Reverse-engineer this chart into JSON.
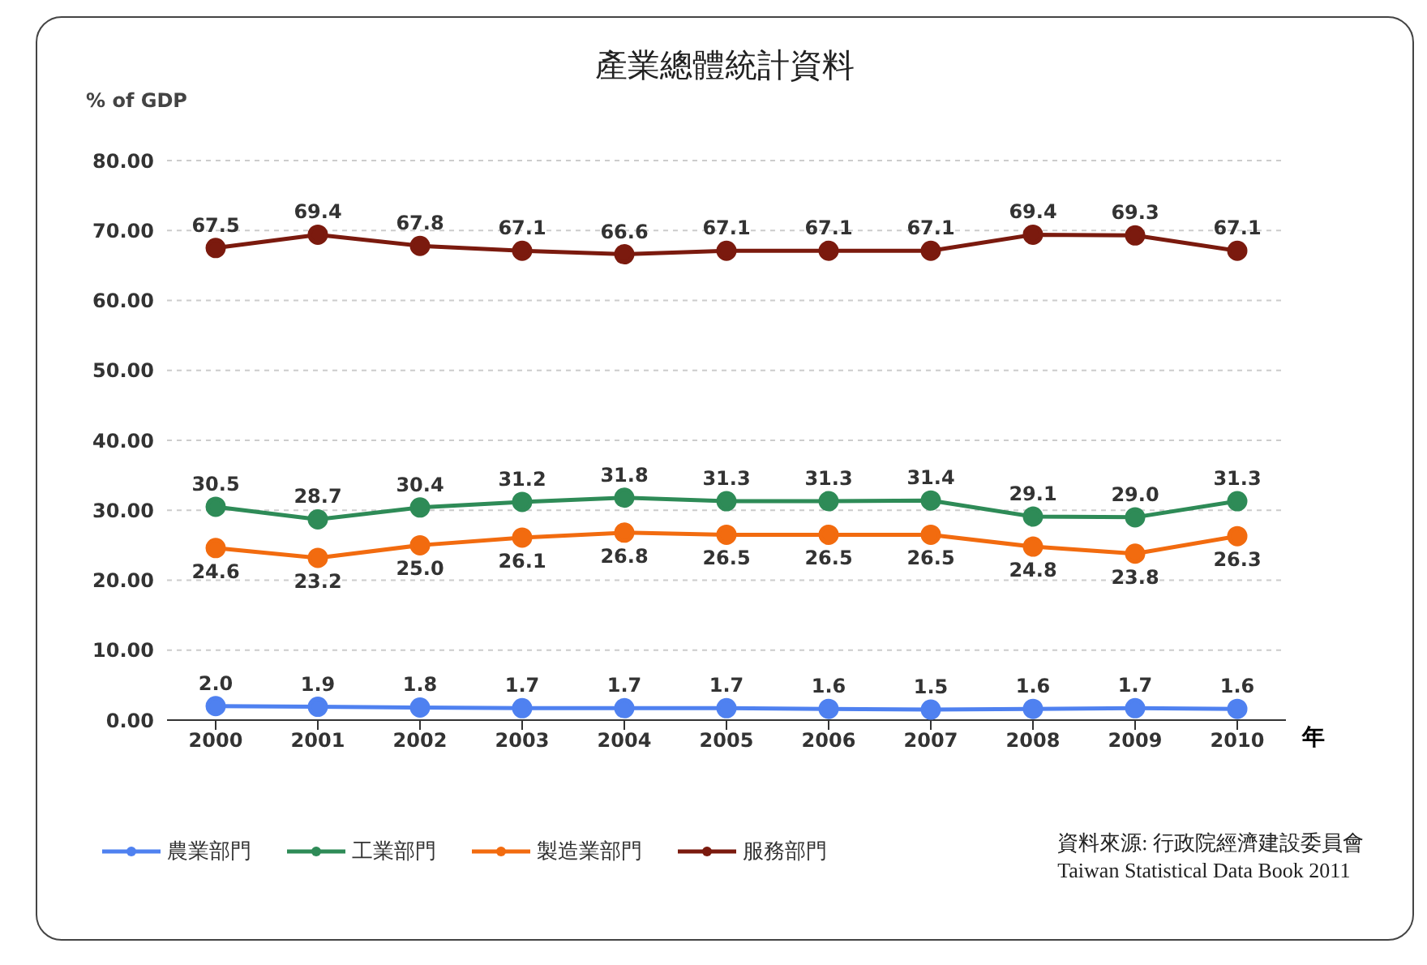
{
  "chart_data": {
    "type": "line",
    "title": "產業總體統計資料",
    "xlabel": "年",
    "ylabel": "% of GDP",
    "categories": [
      "2000",
      "2001",
      "2002",
      "2003",
      "2004",
      "2005",
      "2006",
      "2007",
      "2008",
      "2009",
      "2010"
    ],
    "series": [
      {
        "name": "農業部門",
        "color": "#4f81f0",
        "values": [
          2.0,
          1.9,
          1.8,
          1.7,
          1.7,
          1.7,
          1.6,
          1.5,
          1.6,
          1.7,
          1.6
        ],
        "value_labels": [
          "2.0",
          "1.9",
          "1.8",
          "1.7",
          "1.7",
          "1.7",
          "1.6",
          "1.5",
          "1.6",
          "1.7",
          "1.6"
        ]
      },
      {
        "name": "工業部門",
        "color": "#2e8b57",
        "values": [
          30.5,
          28.7,
          30.4,
          31.2,
          31.8,
          31.3,
          31.3,
          31.4,
          29.1,
          29.0,
          31.3
        ],
        "value_labels": [
          "30.5",
          "28.7",
          "30.4",
          "31.2",
          "31.8",
          "31.3",
          "31.3",
          "31.4",
          "29.1",
          "29.0",
          "31.3"
        ]
      },
      {
        "name": "製造業部門",
        "color": "#f26b0f",
        "values": [
          24.6,
          23.2,
          25.0,
          26.1,
          26.8,
          26.5,
          26.5,
          26.5,
          24.8,
          23.8,
          26.3
        ],
        "value_labels": [
          "24.6",
          "23.2",
          "25.0",
          "26.1",
          "26.8",
          "26.5",
          "26.5",
          "26.5",
          "24.8",
          "23.8",
          "26.3"
        ]
      },
      {
        "name": "服務部門",
        "color": "#7b1a0e",
        "values": [
          67.5,
          69.4,
          67.8,
          67.1,
          66.6,
          67.1,
          67.1,
          67.1,
          69.4,
          69.3,
          67.1
        ],
        "value_labels": [
          "67.5",
          "69.4",
          "67.8",
          "67.1",
          "66.6",
          "67.1",
          "67.1",
          "67.1",
          "69.4",
          "69.3",
          "67.1"
        ]
      }
    ],
    "ylim": [
      0,
      80
    ],
    "yticks": [
      {
        "value": 0,
        "label": "0.00"
      },
      {
        "value": 10,
        "label": "10.00"
      },
      {
        "value": 20,
        "label": "20.00"
      },
      {
        "value": 30,
        "label": "30.00"
      },
      {
        "value": 40,
        "label": "40.00"
      },
      {
        "value": 50,
        "label": "50.00"
      },
      {
        "value": 60,
        "label": "60.00"
      },
      {
        "value": 70,
        "label": "70.00"
      },
      {
        "value": 80,
        "label": "80.00"
      }
    ],
    "grid": "y",
    "legend": "bottom",
    "marker": "circle",
    "line_style": "solid",
    "annotations": [
      "資料來源: 行政院經濟建設委員會",
      "Taiwan Statistical Data Book 2011"
    ]
  }
}
